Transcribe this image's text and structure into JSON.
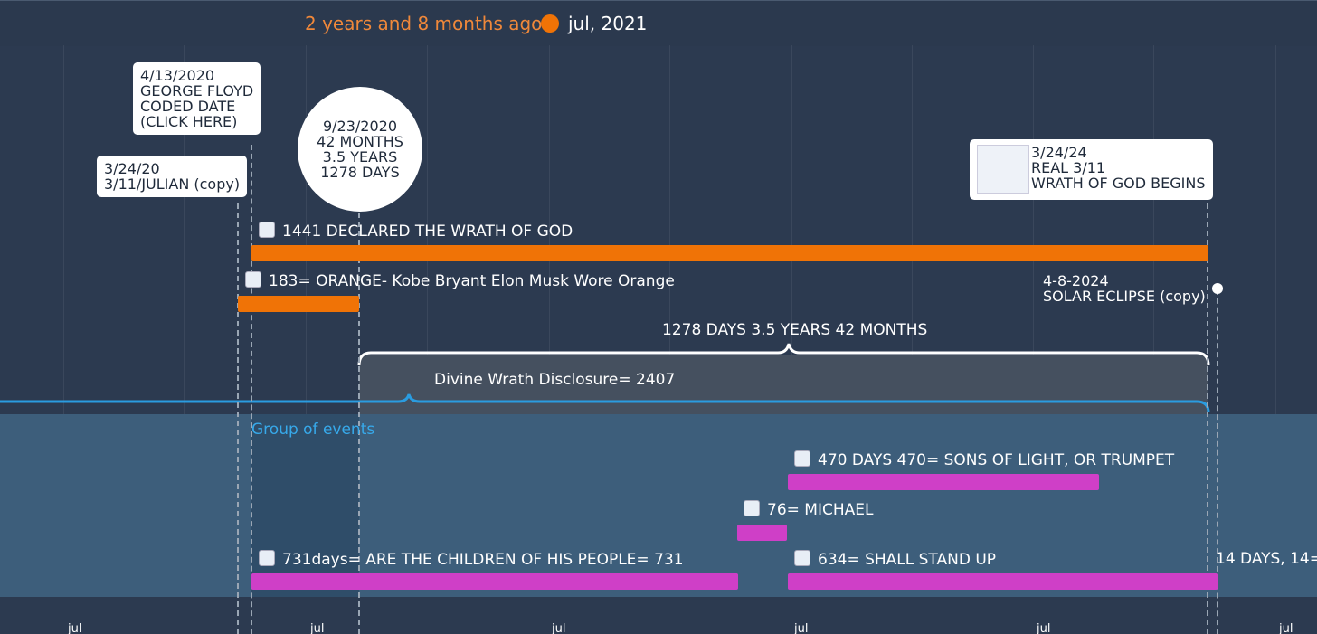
{
  "header": {
    "relative_time": "2 years and 8 months ago",
    "current_date": "jul, 2021"
  },
  "callouts": [
    {
      "lines": [
        "4/13/2020",
        "GEORGE FLOYD",
        "CODED DATE",
        "(CLICK HERE)"
      ]
    },
    {
      "lines": [
        "3/24/20",
        "3/11/JULIAN (copy)"
      ]
    },
    {
      "lines": [
        "9/23/2020",
        "42 MONTHS",
        "3.5 YEARS",
        "1278 DAYS"
      ]
    },
    {
      "lines": [
        "3/24/24",
        "REAL 3/11",
        "WRATH OF GOD BEGINS"
      ]
    },
    {
      "lines": [
        "4-8-2024",
        "SOLAR ECLIPSE (copy)"
      ]
    }
  ],
  "spans": {
    "brace_label": "1278 DAYS 3.5 YEARS 42 MONTHS",
    "period_label": "Divine Wrath Disclosure= 2407",
    "group_label": "Group of events"
  },
  "events": [
    {
      "label": "1441 DECLARED THE WRATH OF GOD"
    },
    {
      "label": "183= ORANGE- Kobe Bryant Elon Musk Wore Orange"
    },
    {
      "label": "470 DAYS 470= SONS OF LIGHT, OR TRUMPET"
    },
    {
      "label": "76= MICHAEL"
    },
    {
      "label": "731days= ARE THE CHILDREN OF HIS PEOPLE= 731"
    },
    {
      "label": "634= SHALL STAND UP"
    },
    {
      "label": "14 DAYS, 14="
    }
  ],
  "axis": {
    "labels": [
      "jul",
      "jul",
      "jul",
      "jul",
      "jul",
      "jul"
    ]
  }
}
